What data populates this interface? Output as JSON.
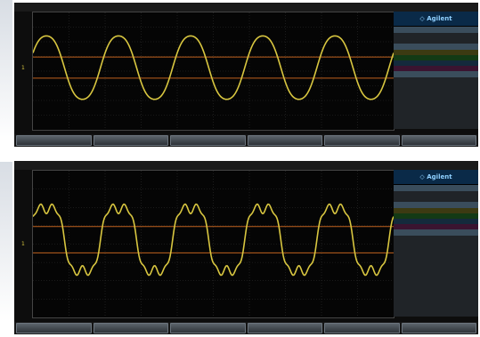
{
  "screenshots": [
    {
      "status": {
        "left": "",
        "ch": "",
        "t": "",
        "trig": "",
        "acq": ""
      },
      "brand": "Agilent",
      "panel": {
        "header1": "",
        "rows1": [
          "",
          ""
        ],
        "header2": "",
        "channels": [
          {
            "label": "",
            "value": ""
          },
          {
            "label": "",
            "value": ""
          },
          {
            "label": "",
            "value": ""
          },
          {
            "label": "",
            "value": ""
          }
        ],
        "header3": "",
        "rows3": [
          {
            "label": "",
            "value": ""
          },
          {
            "label": "",
            "value": ""
          },
          {
            "label": "",
            "value": ""
          }
        ]
      },
      "softkeys": [
        {
          "k": "",
          "v": ""
        },
        {
          "k": "",
          "v": ""
        },
        {
          "k": "",
          "v": ""
        },
        {
          "k": "",
          "v": ""
        },
        {
          "k": "",
          "v": ""
        },
        {
          "k": "",
          "v": ""
        }
      ],
      "ground_marker": "1",
      "wave_color": "#d8c640",
      "wave_style": "sine",
      "wave_cycles": 5
    },
    {
      "status": {
        "left": "",
        "ch": "",
        "t": "",
        "trig": "",
        "acq": ""
      },
      "brand": "Agilent",
      "panel": {
        "header1": "",
        "rows1": [
          "",
          ""
        ],
        "header2": "",
        "channels": [
          {
            "label": "",
            "value": ""
          },
          {
            "label": "",
            "value": ""
          },
          {
            "label": "",
            "value": ""
          },
          {
            "label": "",
            "value": ""
          }
        ],
        "header3": "",
        "rows3": [
          {
            "label": "",
            "value": ""
          },
          {
            "label": "",
            "value": ""
          },
          {
            "label": "",
            "value": ""
          }
        ]
      },
      "softkeys": [
        {
          "k": "",
          "v": ""
        },
        {
          "k": "",
          "v": ""
        },
        {
          "k": "",
          "v": ""
        },
        {
          "k": "",
          "v": ""
        },
        {
          "k": "",
          "v": ""
        },
        {
          "k": "",
          "v": ""
        }
      ],
      "ground_marker": "1",
      "wave_color": "#d8c640",
      "wave_style": "harmonic",
      "wave_cycles": 5
    }
  ]
}
